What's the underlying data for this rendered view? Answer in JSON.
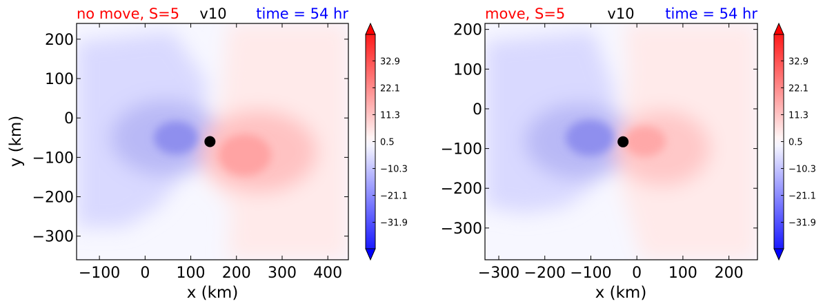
{
  "chart_data": [
    {
      "type": "heatmap",
      "variable": "v10",
      "case_label": "no move, S=5",
      "time_label": "time = 54 hr",
      "xlabel": "x (km)",
      "ylabel": "y (km)",
      "xlim": [
        -150,
        445
      ],
      "ylim": [
        -360,
        240
      ],
      "xticks": [
        -100,
        0,
        100,
        200,
        300,
        400
      ],
      "xtick_labels": [
        "−100",
        "0",
        "100",
        "200",
        "300",
        "400"
      ],
      "yticks": [
        200,
        100,
        0,
        -100,
        -200,
        -300
      ],
      "ytick_labels": [
        "200",
        "100",
        "0",
        "−100",
        "−200",
        "−300"
      ],
      "center_marker": {
        "x": 142,
        "y": -60
      },
      "colorbar": {
        "range": [
          -42.5,
          43.5
        ],
        "tick_values": [
          32.9,
          22.1,
          11.3,
          0.5,
          -10.3,
          -21.1,
          -31.9
        ],
        "tick_labels": [
          "32.9",
          "22.1",
          "11.3",
          "0.5",
          "−10.3",
          "−21.1",
          "−31.9"
        ],
        "extend": "both",
        "colormap": "bwr"
      }
    },
    {
      "type": "heatmap",
      "variable": "v10",
      "case_label": "move, S=5",
      "time_label": "time = 54 hr",
      "xlabel": "x (km)",
      "ylabel": "",
      "xlim": [
        -330,
        262
      ],
      "ylim": [
        -380,
        215
      ],
      "xticks": [
        -300,
        -200,
        -100,
        0,
        100,
        200
      ],
      "xtick_labels": [
        "−300",
        "−200",
        "−100",
        "0",
        "100",
        "200"
      ],
      "yticks": [
        200,
        100,
        0,
        -100,
        -200,
        -300
      ],
      "ytick_labels": [
        "200",
        "100",
        "0",
        "−100",
        "−200",
        "−300"
      ],
      "center_marker": {
        "x": -30,
        "y": -83
      },
      "colorbar": {
        "range": [
          -42.5,
          43.5
        ],
        "tick_values": [
          32.9,
          22.1,
          11.3,
          0.5,
          -10.3,
          -21.1,
          -31.9
        ],
        "tick_labels": [
          "32.9",
          "22.1",
          "11.3",
          "0.5",
          "−10.3",
          "−21.1",
          "−31.9"
        ],
        "extend": "both",
        "colormap": "bwr"
      }
    }
  ],
  "colors": {
    "case_label": "#ff0000",
    "time_label": "#0000ff",
    "variable_label": "#000000"
  }
}
